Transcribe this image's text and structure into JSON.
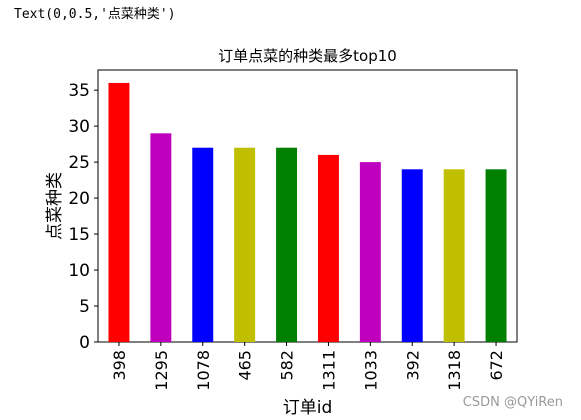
{
  "output_text": "Text(0,0.5,'点菜种类')",
  "watermark": "CSDN @QYiRen",
  "chart_data": {
    "type": "bar",
    "title": "订单点菜的种类最多top10",
    "xlabel": "订单id",
    "ylabel": "点菜种类",
    "categories": [
      "398",
      "1295",
      "1078",
      "465",
      "582",
      "1311",
      "1033",
      "392",
      "1318",
      "672"
    ],
    "values": [
      36,
      29,
      27,
      27,
      27,
      26,
      25,
      24,
      24,
      24
    ],
    "bar_colors": [
      "#ff0000",
      "#bf00bf",
      "#0000ff",
      "#bfbf00",
      "#008000",
      "#ff0000",
      "#bf00bf",
      "#0000ff",
      "#bfbf00",
      "#008000"
    ],
    "ylim": [
      0,
      37.8
    ],
    "yticks": [
      0,
      5,
      10,
      15,
      20,
      25,
      30,
      35
    ],
    "grid": false,
    "legend": "none"
  }
}
